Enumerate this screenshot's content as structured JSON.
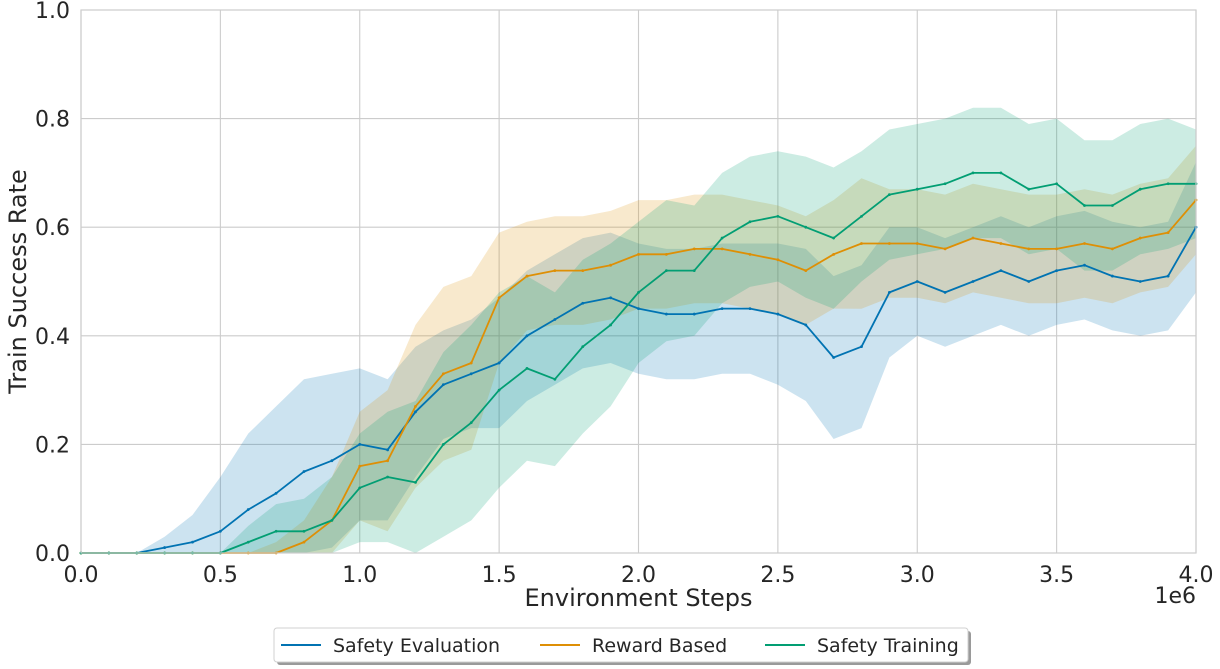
{
  "chart_data": {
    "type": "line",
    "title": "",
    "xlabel": "Environment Steps",
    "ylabel": "Train Success Rate",
    "x_offset_label": "1e6",
    "xlim": [
      0,
      4.0
    ],
    "ylim": [
      0,
      1.0
    ],
    "x_ticks": [
      "0.0",
      "0.5",
      "1.0",
      "1.5",
      "2.0",
      "2.5",
      "3.0",
      "3.5",
      "4.0"
    ],
    "y_ticks": [
      "0.0",
      "0.2",
      "0.4",
      "0.6",
      "0.8",
      "1.0"
    ],
    "grid": true,
    "legend_position": "bottom-center",
    "x": [
      0.0,
      0.1,
      0.2,
      0.3,
      0.4,
      0.5,
      0.6,
      0.7,
      0.8,
      0.9,
      1.0,
      1.1,
      1.2,
      1.3,
      1.4,
      1.5,
      1.6,
      1.7,
      1.8,
      1.9,
      2.0,
      2.1,
      2.2,
      2.3,
      2.4,
      2.5,
      2.6,
      2.7,
      2.8,
      2.9,
      3.0,
      3.1,
      3.2,
      3.3,
      3.4,
      3.5,
      3.6,
      3.7,
      3.8,
      3.9,
      4.0
    ],
    "series": [
      {
        "name": "Safety Evaluation",
        "color": "#0173b2",
        "values": [
          0.0,
          0.0,
          0.0,
          0.01,
          0.02,
          0.04,
          0.08,
          0.11,
          0.15,
          0.17,
          0.2,
          0.19,
          0.26,
          0.31,
          0.33,
          0.35,
          0.4,
          0.43,
          0.46,
          0.47,
          0.45,
          0.44,
          0.44,
          0.45,
          0.45,
          0.44,
          0.42,
          0.36,
          0.38,
          0.48,
          0.5,
          0.48,
          0.5,
          0.52,
          0.5,
          0.52,
          0.53,
          0.51,
          0.5,
          0.51,
          0.6
        ],
        "band": [
          0.0,
          0.0,
          0.0,
          0.02,
          0.05,
          0.1,
          0.14,
          0.16,
          0.17,
          0.16,
          0.14,
          0.13,
          0.12,
          0.1,
          0.1,
          0.12,
          0.12,
          0.12,
          0.12,
          0.12,
          0.12,
          0.12,
          0.12,
          0.12,
          0.12,
          0.13,
          0.14,
          0.15,
          0.15,
          0.12,
          0.1,
          0.1,
          0.1,
          0.1,
          0.1,
          0.1,
          0.1,
          0.1,
          0.1,
          0.1,
          0.12
        ]
      },
      {
        "name": "Reward Based",
        "color": "#de8f05",
        "values": [
          0.0,
          0.0,
          0.0,
          0.0,
          0.0,
          0.0,
          0.0,
          0.0,
          0.02,
          0.06,
          0.16,
          0.17,
          0.27,
          0.33,
          0.35,
          0.47,
          0.51,
          0.52,
          0.52,
          0.53,
          0.55,
          0.55,
          0.56,
          0.56,
          0.55,
          0.54,
          0.52,
          0.55,
          0.57,
          0.57,
          0.57,
          0.56,
          0.58,
          0.57,
          0.56,
          0.56,
          0.57,
          0.56,
          0.58,
          0.59,
          0.65
        ],
        "band": [
          0.0,
          0.0,
          0.0,
          0.0,
          0.0,
          0.0,
          0.0,
          0.02,
          0.04,
          0.08,
          0.1,
          0.13,
          0.15,
          0.16,
          0.16,
          0.12,
          0.1,
          0.1,
          0.1,
          0.1,
          0.1,
          0.1,
          0.1,
          0.1,
          0.1,
          0.1,
          0.1,
          0.1,
          0.12,
          0.1,
          0.1,
          0.1,
          0.1,
          0.1,
          0.1,
          0.1,
          0.1,
          0.1,
          0.1,
          0.1,
          0.1
        ]
      },
      {
        "name": "Safety Training",
        "color": "#029e73",
        "values": [
          0.0,
          0.0,
          0.0,
          0.0,
          0.0,
          0.0,
          0.02,
          0.04,
          0.04,
          0.06,
          0.12,
          0.14,
          0.13,
          0.2,
          0.24,
          0.3,
          0.34,
          0.32,
          0.38,
          0.42,
          0.48,
          0.52,
          0.52,
          0.58,
          0.61,
          0.62,
          0.6,
          0.58,
          0.62,
          0.66,
          0.67,
          0.68,
          0.7,
          0.7,
          0.67,
          0.68,
          0.64,
          0.64,
          0.67,
          0.68,
          0.68
        ],
        "band": [
          0.0,
          0.0,
          0.0,
          0.0,
          0.0,
          0.0,
          0.03,
          0.05,
          0.06,
          0.08,
          0.1,
          0.12,
          0.15,
          0.17,
          0.18,
          0.18,
          0.17,
          0.16,
          0.16,
          0.15,
          0.13,
          0.13,
          0.12,
          0.12,
          0.12,
          0.12,
          0.13,
          0.13,
          0.12,
          0.12,
          0.12,
          0.12,
          0.12,
          0.12,
          0.12,
          0.12,
          0.12,
          0.12,
          0.12,
          0.12,
          0.1
        ]
      }
    ]
  }
}
